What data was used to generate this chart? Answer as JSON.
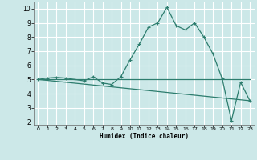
{
  "background_color": "#cce8e8",
  "grid_color": "#ffffff",
  "line_color": "#2d7d6e",
  "xlabel": "Humidex (Indice chaleur)",
  "xlim": [
    -0.5,
    23.5
  ],
  "ylim": [
    1.8,
    10.5
  ],
  "yticks": [
    2,
    3,
    4,
    5,
    6,
    7,
    8,
    9,
    10
  ],
  "xticks": [
    0,
    1,
    2,
    3,
    4,
    5,
    6,
    7,
    8,
    9,
    10,
    11,
    12,
    13,
    14,
    15,
    16,
    17,
    18,
    19,
    20,
    21,
    22,
    23
  ],
  "main_x": [
    0,
    1,
    2,
    3,
    4,
    5,
    6,
    7,
    8,
    9,
    10,
    11,
    12,
    13,
    14,
    15,
    16,
    17,
    18,
    19,
    20,
    21,
    22,
    23
  ],
  "main_y": [
    5.0,
    5.1,
    5.15,
    5.1,
    5.0,
    4.9,
    5.2,
    4.75,
    4.65,
    5.2,
    6.4,
    7.5,
    8.7,
    9.0,
    10.1,
    8.8,
    8.5,
    9.0,
    8.0,
    6.8,
    5.05,
    2.1,
    4.8,
    3.5
  ],
  "line1_x": [
    0,
    23
  ],
  "line1_y": [
    5.0,
    5.0
  ],
  "line2_x": [
    0,
    23
  ],
  "line2_y": [
    5.0,
    3.5
  ]
}
